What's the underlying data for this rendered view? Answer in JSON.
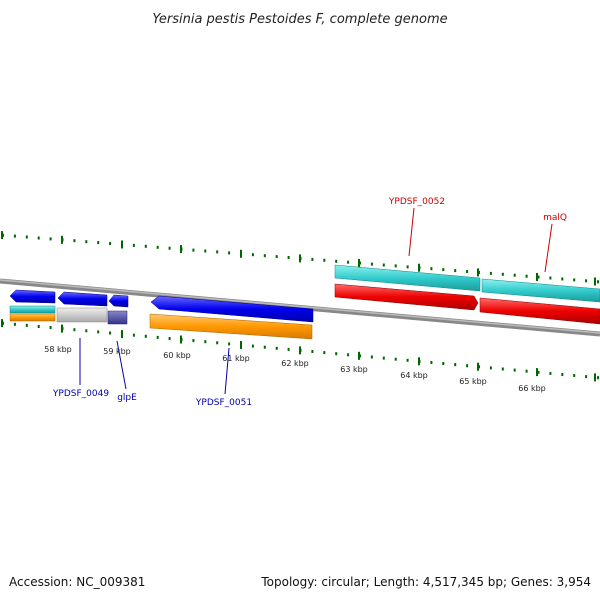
{
  "title": "Yersinia pestis Pestoides F, complete genome",
  "footer": {
    "accession": "Accession: NC_009381",
    "summary": "Topology: circular; Length: 4,517,345 bp; Genes: 3,954"
  },
  "scale_labels": [
    "58 kbp",
    "59 kbp",
    "60 kbp",
    "61 kbp",
    "62 kbp",
    "63 kbp",
    "64 kbp",
    "65 kbp",
    "66 kbp"
  ],
  "genes": {
    "forward": [
      {
        "label": "YPDSF_0052",
        "color": "#cc0000"
      },
      {
        "label": "malQ",
        "color": "#cc0000"
      }
    ],
    "reverse": [
      {
        "label": "YPDSF_0049",
        "color": "#0000aa"
      },
      {
        "label": "glpE",
        "color": "#0000aa"
      },
      {
        "label": "YPDSF_0051",
        "color": "#0000aa"
      }
    ]
  },
  "colors": {
    "gene_blue": "#0000ee",
    "cds_orange": "#ff9900",
    "cds_teal": "#33cccc",
    "cds_red": "#ee0000",
    "gray_feature": "#cccccc",
    "purple_feature": "#5555aa",
    "tick_green": "#006600",
    "backbone": "#888888"
  }
}
